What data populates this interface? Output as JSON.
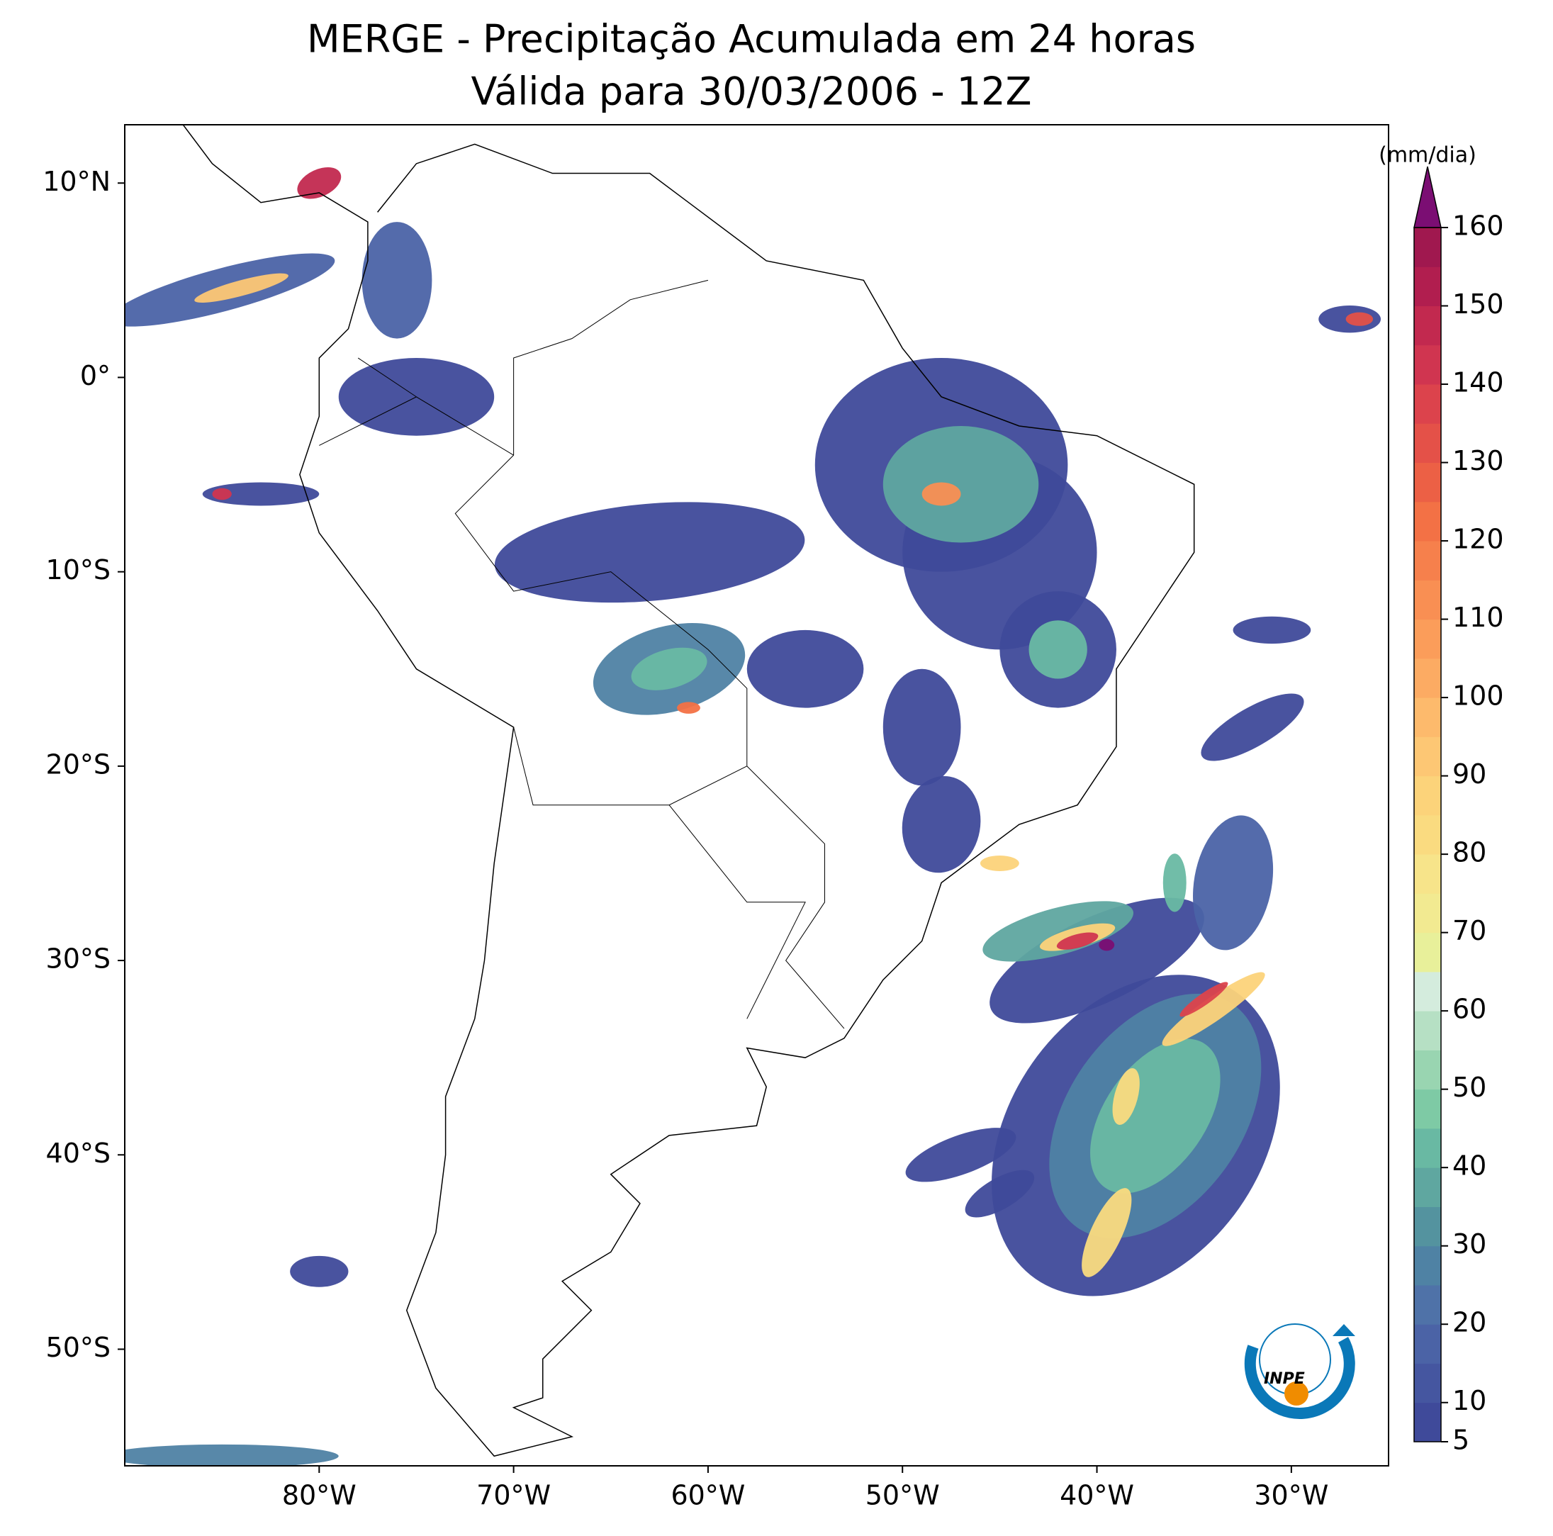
{
  "chart_data": {
    "type": "map",
    "title": "MERGE - Precipitação Acumulada em 24 horas",
    "subtitle": "Válida para 30/03/2006 - 12Z",
    "xlim": [
      -90,
      -25
    ],
    "ylim": [
      -56,
      13
    ],
    "xticks": [
      {
        "value": -80,
        "label": "80°W"
      },
      {
        "value": -70,
        "label": "70°W"
      },
      {
        "value": -60,
        "label": "60°W"
      },
      {
        "value": -50,
        "label": "50°W"
      },
      {
        "value": -40,
        "label": "40°W"
      },
      {
        "value": -30,
        "label": "30°W"
      }
    ],
    "yticks": [
      {
        "value": 10,
        "label": "10°N"
      },
      {
        "value": 0,
        "label": "0°"
      },
      {
        "value": -10,
        "label": "10°S"
      },
      {
        "value": -20,
        "label": "20°S"
      },
      {
        "value": -30,
        "label": "30°S"
      },
      {
        "value": -40,
        "label": "40°S"
      },
      {
        "value": -50,
        "label": "50°S"
      }
    ],
    "colorbar": {
      "label": "(mm/dia)",
      "lim": [
        5,
        160
      ],
      "ticks": [
        5,
        10,
        20,
        30,
        40,
        50,
        60,
        70,
        80,
        90,
        100,
        110,
        120,
        130,
        140,
        150,
        160
      ],
      "colors": [
        "#3f4a9a",
        "#4556a0",
        "#4b63a6",
        "#4f72a8",
        "#4f82a4",
        "#54939f",
        "#5fa7a0",
        "#69b9a3",
        "#7ecaa5",
        "#99d5b1",
        "#b6e0c4",
        "#d4ecdd",
        "#e8f09a",
        "#f2ea91",
        "#f7e48a",
        "#fadb80",
        "#fcd37a",
        "#fdc774",
        "#fdba6c",
        "#fcab63",
        "#fb9d5a",
        "#f98f53",
        "#f6804c",
        "#f37145",
        "#ec6045",
        "#e45148",
        "#dc434c",
        "#d03550",
        "#c2294f",
        "#b11e4f",
        "#a0184f"
      ],
      "extend_color": "#7b0e73"
    },
    "logo": "INPE"
  }
}
